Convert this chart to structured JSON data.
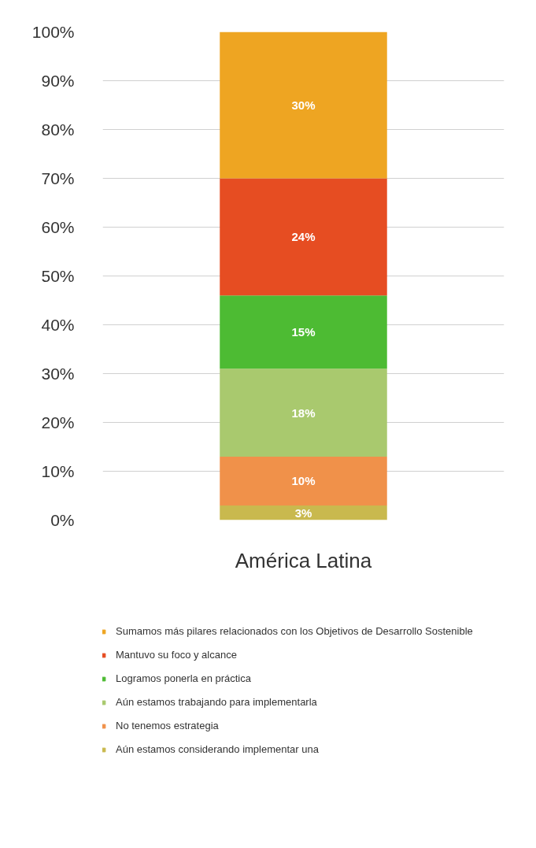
{
  "chart_data": {
    "type": "bar",
    "stacked": true,
    "categories": [
      "América Latina"
    ],
    "series": [
      {
        "name": "Aún estamos considerando implementar una",
        "color": "#c9b94e",
        "values": [
          3
        ],
        "value_labels": [
          "3%"
        ]
      },
      {
        "name": "No tenemos estrategia",
        "color": "#f0914a",
        "values": [
          10
        ],
        "value_labels": [
          "10%"
        ]
      },
      {
        "name": "Aún estamos trabajando para implementarla",
        "color": "#a9c96e",
        "values": [
          18
        ],
        "value_labels": [
          "18%"
        ]
      },
      {
        "name": "Logramos ponerla en práctica",
        "color": "#4dbb33",
        "values": [
          15
        ],
        "value_labels": [
          "15%"
        ]
      },
      {
        "name": "Mantuvo su foco y alcance",
        "color": "#e64d22",
        "values": [
          24
        ],
        "value_labels": [
          "24%"
        ]
      },
      {
        "name": "Sumamos más pilares relacionados con los Objetivos de Desarrollo Sostenible",
        "color": "#eea522",
        "values": [
          30
        ],
        "value_labels": [
          "30%"
        ]
      }
    ],
    "ylim": [
      0,
      100
    ],
    "yticks": [
      {
        "value": 0,
        "label": "0%"
      },
      {
        "value": 10,
        "label": "10%"
      },
      {
        "value": 20,
        "label": "20%"
      },
      {
        "value": 30,
        "label": "30%"
      },
      {
        "value": 40,
        "label": "40%"
      },
      {
        "value": 50,
        "label": "50%"
      },
      {
        "value": 60,
        "label": "60%"
      },
      {
        "value": 70,
        "label": "70%"
      },
      {
        "value": 80,
        "label": "80%"
      },
      {
        "value": 90,
        "label": "90%"
      },
      {
        "value": 100,
        "label": "100%"
      }
    ],
    "grid": "y",
    "legend": "bottom",
    "marker": "square"
  }
}
